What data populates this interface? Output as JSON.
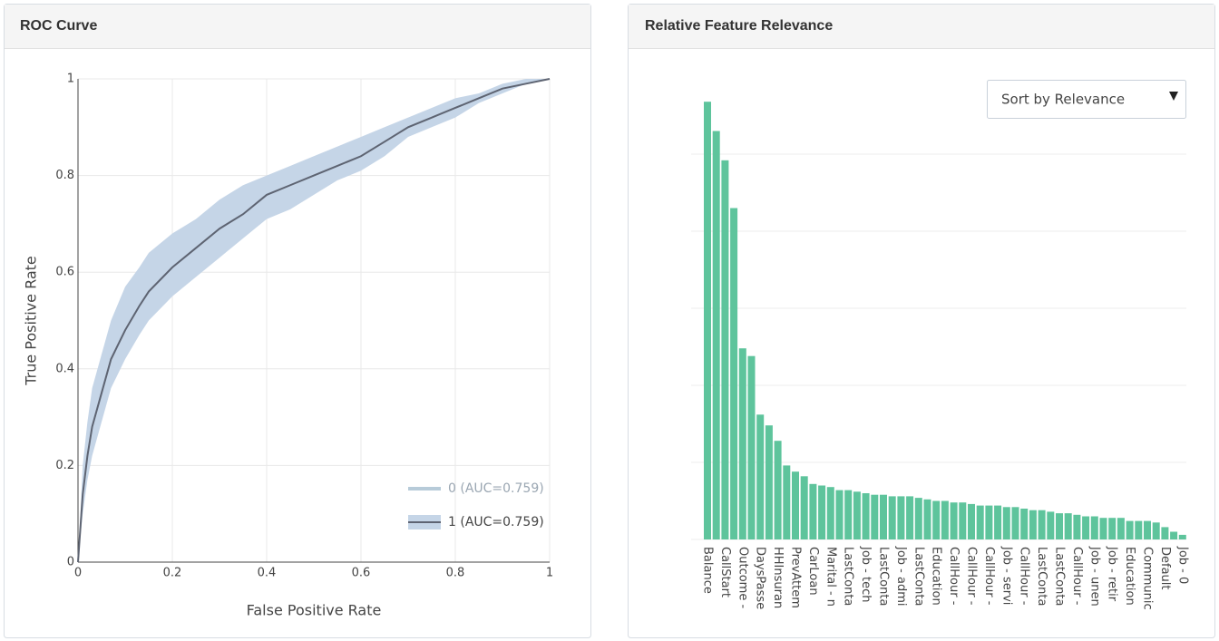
{
  "chart_data": [
    {
      "type": "line",
      "title": "ROC Curve",
      "x_label": "False Positive Rate",
      "y_label": "True Positive Rate",
      "x": [
        0,
        0.01,
        0.02,
        0.03,
        0.05,
        0.07,
        0.1,
        0.13,
        0.15,
        0.2,
        0.25,
        0.3,
        0.35,
        0.4,
        0.45,
        0.5,
        0.55,
        0.6,
        0.65,
        0.7,
        0.75,
        0.8,
        0.85,
        0.9,
        0.95,
        1
      ],
      "series": [
        {
          "name": "0 (AUC=0.759)",
          "color": "#b7cbd9"
        },
        {
          "name": "1 (AUC=0.759)",
          "color": "#5e6472",
          "band_color": "#c5d5e7",
          "values": [
            0,
            0.14,
            0.22,
            0.28,
            0.35,
            0.42,
            0.48,
            0.53,
            0.56,
            0.61,
            0.65,
            0.69,
            0.72,
            0.76,
            0.78,
            0.8,
            0.82,
            0.84,
            0.87,
            0.9,
            0.92,
            0.94,
            0.96,
            0.98,
            0.99,
            1
          ],
          "lower": [
            0,
            0.1,
            0.17,
            0.22,
            0.29,
            0.36,
            0.42,
            0.47,
            0.5,
            0.55,
            0.59,
            0.63,
            0.67,
            0.71,
            0.73,
            0.76,
            0.79,
            0.81,
            0.84,
            0.88,
            0.9,
            0.92,
            0.95,
            0.97,
            0.99,
            1
          ],
          "upper": [
            0,
            0.2,
            0.29,
            0.36,
            0.43,
            0.5,
            0.57,
            0.61,
            0.64,
            0.68,
            0.71,
            0.75,
            0.78,
            0.8,
            0.82,
            0.84,
            0.86,
            0.88,
            0.9,
            0.92,
            0.94,
            0.96,
            0.97,
            0.99,
            1,
            1
          ]
        }
      ],
      "xlim": [
        0,
        1
      ],
      "xticks": [
        0,
        0.2,
        0.4,
        0.6,
        0.8,
        1
      ],
      "ylim": [
        0,
        1
      ],
      "yticks": [
        0,
        0.2,
        0.4,
        0.6,
        0.8,
        1
      ],
      "grid": true,
      "legend": "bottom-right"
    },
    {
      "type": "bar",
      "title": "Relative Feature Relevance",
      "sort_control": "Sort by Relevance",
      "color": "#5ec49c",
      "categories": [
        "Balance",
        null,
        "CallStart",
        null,
        "Outcome -",
        null,
        "DaysPasse",
        null,
        "HHInsuran",
        null,
        "PrevAttem",
        null,
        "CarLoan",
        null,
        "Marital - n",
        null,
        "LastConta",
        null,
        "Job - tech",
        null,
        "LastConta",
        null,
        "Job - admi",
        null,
        "LastConta",
        null,
        "Education",
        null,
        "CallHour -",
        null,
        "CallHour -",
        null,
        "CallHour -",
        null,
        "Job - servi",
        null,
        "CallHour -",
        null,
        "LastConta",
        null,
        "LastConta",
        null,
        "CallHour -",
        null,
        "Job - unen",
        null,
        "Job - retir",
        null,
        "Education",
        null,
        "Communic",
        null,
        "Default",
        null,
        "Job - 0"
      ],
      "values": [
        0.284,
        0.265,
        0.246,
        0.215,
        0.124,
        0.119,
        0.081,
        0.074,
        0.064,
        0.048,
        0.044,
        0.041,
        0.036,
        0.035,
        0.034,
        0.032,
        0.032,
        0.031,
        0.03,
        0.029,
        0.029,
        0.028,
        0.028,
        0.028,
        0.027,
        0.026,
        0.025,
        0.025,
        0.024,
        0.024,
        0.023,
        0.022,
        0.022,
        0.022,
        0.021,
        0.021,
        0.02,
        0.019,
        0.019,
        0.018,
        0.017,
        0.017,
        0.016,
        0.015,
        0.015,
        0.014,
        0.014,
        0.014,
        0.012,
        0.012,
        0.012,
        0.011,
        0.008,
        0.005,
        0.003
      ],
      "ylim": [
        0,
        0.3
      ],
      "yticks": [
        0,
        0.05,
        0.1,
        0.15,
        0.2,
        0.25
      ],
      "grid": true
    }
  ]
}
